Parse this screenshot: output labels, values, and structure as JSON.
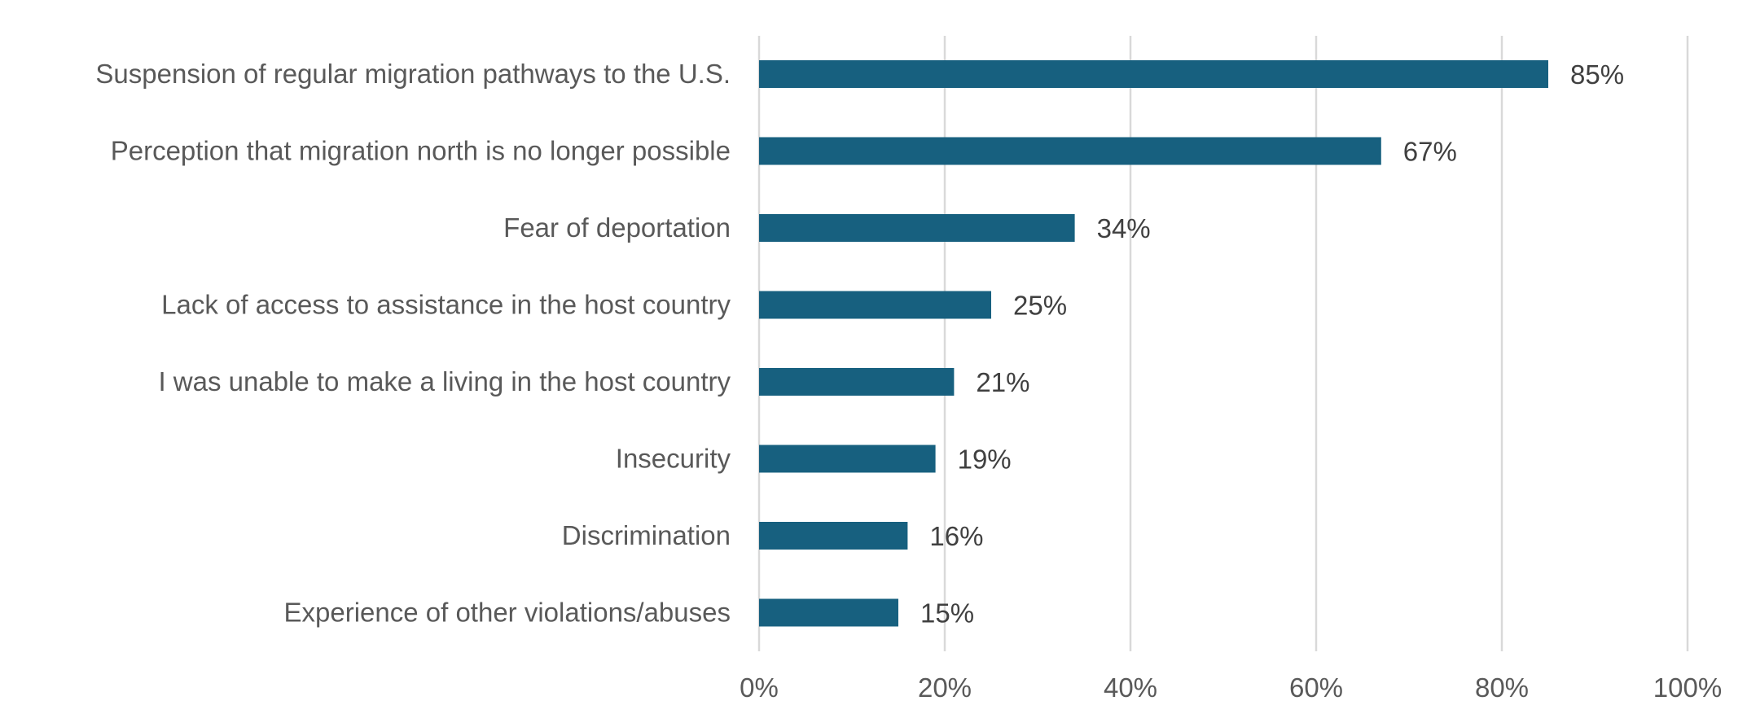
{
  "chart_data": {
    "type": "bar",
    "orientation": "horizontal",
    "categories": [
      "Suspension of regular migration pathways to the U.S.",
      "Perception that migration north is no longer possible",
      "Fear of deportation",
      "Lack of access to assistance in the host country",
      "I was unable to make a living in the host country",
      "Insecurity",
      "Discrimination",
      "Experience of other violations/abuses"
    ],
    "values": [
      85,
      67,
      34,
      25,
      21,
      19,
      16,
      15
    ],
    "value_labels": [
      "85%",
      "67%",
      "34%",
      "25%",
      "21%",
      "19%",
      "16%",
      "15%"
    ],
    "xlim": [
      0,
      100
    ],
    "xticks": [
      0,
      20,
      40,
      60,
      80,
      100
    ],
    "xtick_labels": [
      "0%",
      "20%",
      "40%",
      "60%",
      "80%",
      "100%"
    ],
    "grid": "vertical",
    "legend": "none",
    "bar_color": "#17607f",
    "gridline_color": "#d9d9d9"
  }
}
